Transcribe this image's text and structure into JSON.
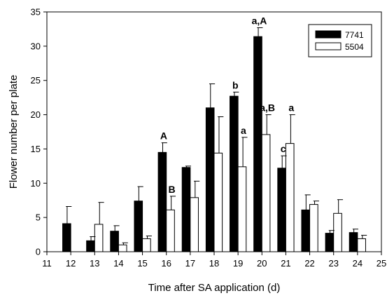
{
  "chart_data": {
    "type": "bar",
    "title": "",
    "xlabel": "Time after SA application (d)",
    "ylabel": "Flower number per plate",
    "xlim": [
      11,
      25
    ],
    "ylim": [
      0,
      35
    ],
    "x_ticks": [
      "11",
      "12",
      "13",
      "14",
      "15",
      "16",
      "17",
      "18",
      "19",
      "20",
      "21",
      "22",
      "23",
      "24",
      "25"
    ],
    "y_ticks": [
      "0",
      "5",
      "10",
      "15",
      "20",
      "25",
      "30",
      "35"
    ],
    "categories": [
      12,
      13,
      14,
      15,
      16,
      17,
      18,
      19,
      20,
      21,
      22,
      23,
      24
    ],
    "series": [
      {
        "name": "7741",
        "color": "#000000",
        "values": [
          4.1,
          1.6,
          3.0,
          7.4,
          14.5,
          12.3,
          21.0,
          22.7,
          31.4,
          12.2,
          6.1,
          2.7,
          2.8
        ],
        "errors": [
          2.5,
          0.6,
          0.8,
          2.1,
          1.4,
          0.2,
          3.5,
          0.6,
          1.3,
          1.8,
          2.2,
          0.4,
          0.5
        ]
      },
      {
        "name": "5504",
        "color": "#ffffff",
        "values": [
          0,
          4.0,
          1.0,
          1.9,
          6.1,
          7.9,
          14.4,
          12.4,
          17.1,
          15.8,
          6.9,
          5.6,
          1.9
        ],
        "errors": [
          0,
          3.2,
          0.3,
          0.4,
          2.0,
          2.4,
          5.3,
          4.3,
          2.9,
          4.2,
          0.5,
          2.0,
          0.5
        ]
      }
    ],
    "annotations": [
      {
        "x": 16,
        "series": 0,
        "text": "A"
      },
      {
        "x": 16,
        "series": 1,
        "text": "B"
      },
      {
        "x": 19,
        "series": 0,
        "text": "b"
      },
      {
        "x": 19,
        "series": 1,
        "text": "a"
      },
      {
        "x": 20,
        "series": 0,
        "text": "a,A"
      },
      {
        "x": 20,
        "series": 1,
        "text": "a,B"
      },
      {
        "x": 21,
        "series": 0,
        "text": "c"
      },
      {
        "x": 21,
        "series": 1,
        "text": "a"
      }
    ],
    "legend": {
      "placement": "top-right"
    },
    "grid": false
  }
}
